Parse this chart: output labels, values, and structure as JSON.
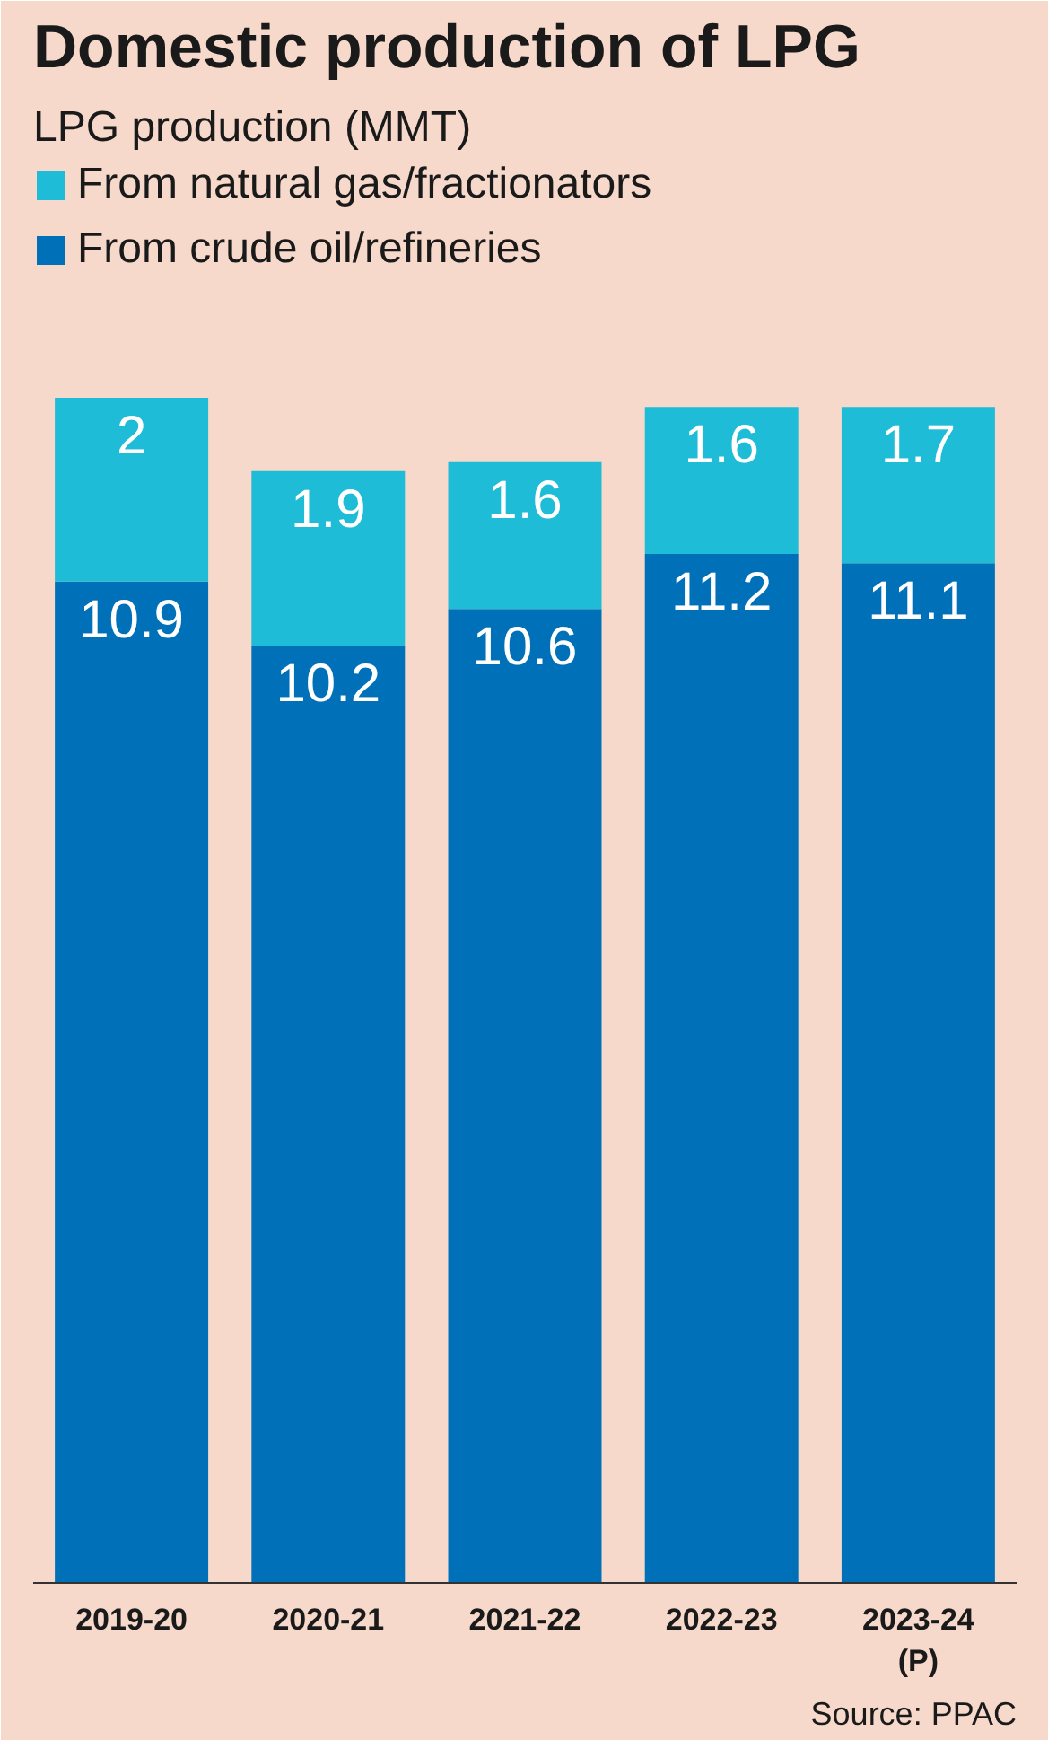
{
  "chart_data": {
    "type": "bar",
    "title": "Domestic production of LPG",
    "subtitle": "LPG production (MMT)",
    "categories": [
      "2019-20",
      "2020-21",
      "2021-22",
      "2022-23",
      "2023-24\n(P)"
    ],
    "stacked": true,
    "data_labels": true,
    "legend": "top left",
    "grid": false,
    "tick_labels": "x",
    "series": [
      {
        "name": "From crude oil/refineries",
        "color": "#0071b9",
        "values": [
          10.9,
          10.2,
          10.6,
          11.2,
          11.1
        ]
      },
      {
        "name": "From natural gas/fractionators",
        "color": "#1ebcd6",
        "values": [
          2,
          1.9,
          1.6,
          1.6,
          1.7
        ]
      }
    ],
    "annotations": [
      "Source: PPAC"
    ]
  }
}
